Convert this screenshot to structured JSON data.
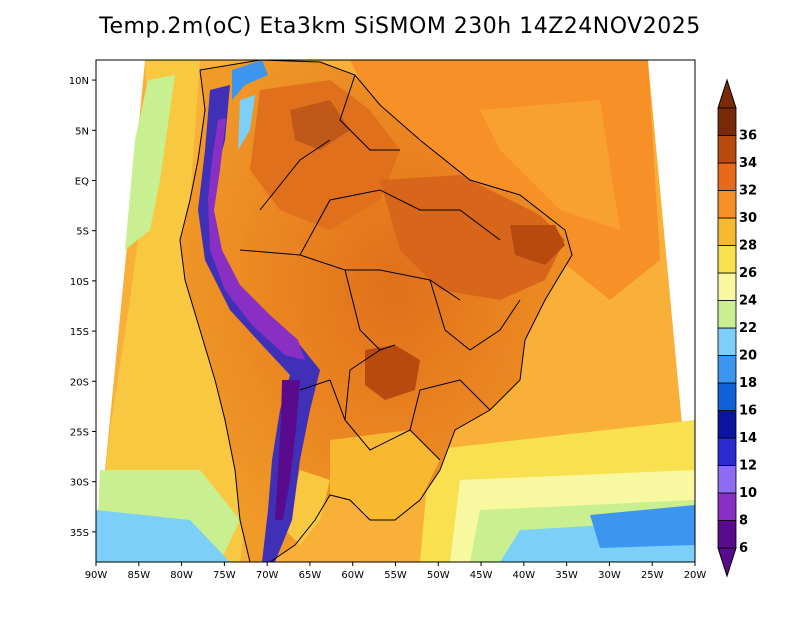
{
  "map": {
    "title": "Temp.2m(oC) Eta3km SiSMOM 230h 14Z24NOV2025",
    "lat_labels": [
      "10N",
      "5N",
      "EQ",
      "5S",
      "10S",
      "15S",
      "20S",
      "25S",
      "30S",
      "35S"
    ],
    "lat_values": [
      10,
      5,
      0,
      -5,
      -10,
      -15,
      -20,
      -25,
      -30,
      -35
    ],
    "lon_labels": [
      "90W",
      "85W",
      "80W",
      "75W",
      "70W",
      "65W",
      "60W",
      "55W",
      "50W",
      "45W",
      "40W",
      "35W",
      "30W",
      "25W",
      "20W"
    ],
    "lon_values": [
      -90,
      -85,
      -80,
      -75,
      -70,
      -65,
      -60,
      -55,
      -50,
      -45,
      -40,
      -35,
      -30,
      -25,
      -20
    ],
    "lat_range": [
      -38,
      12
    ],
    "lon_range": [
      -90,
      -20
    ]
  },
  "colorbar": {
    "labels": [
      "6",
      "8",
      "10",
      "12",
      "14",
      "16",
      "18",
      "20",
      "22",
      "24",
      "26",
      "28",
      "30",
      "32",
      "34",
      "36"
    ],
    "colors": [
      "#5a0a8c",
      "#8a2fc4",
      "#8c6cf0",
      "#2a2ad0",
      "#0a14a0",
      "#1060d8",
      "#3c96f0",
      "#7cd0f8",
      "#c8f090",
      "#f8f8a0",
      "#f8e050",
      "#f8b830",
      "#f89028",
      "#e86a18",
      "#b84a10",
      "#7a2a08"
    ]
  },
  "colors": {
    "ocean_warm": "#f8a030",
    "ocean_mild": "#f8c840",
    "ocean_cool": "#f8e870",
    "land_hot": "#e8781c",
    "land_very_hot": "#c0581a",
    "andes": "#4030b8"
  }
}
